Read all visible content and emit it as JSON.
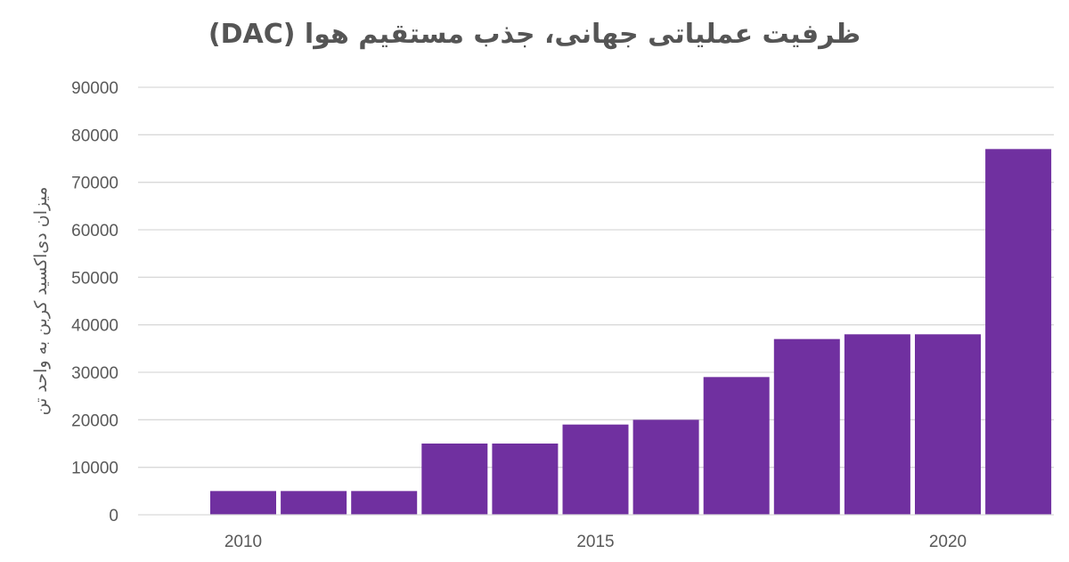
{
  "chart_data": {
    "type": "bar",
    "title": "ظرفیت عملیاتی جهانی، جذب مستقیم هوا (DAC)",
    "ylabel": "میزان دی‌اکسید کربن به واحد تن",
    "xlabel": "",
    "ylim": [
      0,
      90000
    ],
    "yticks": [
      "0",
      "10000",
      "20000",
      "30000",
      "40000",
      "50000",
      "60000",
      "70000",
      "80000",
      "90000"
    ],
    "x_tick_labels": [
      "2010",
      "2015",
      "2020"
    ],
    "categories": [
      2010,
      2011,
      2012,
      2013,
      2014,
      2015,
      2016,
      2017,
      2018,
      2019,
      2020,
      2021
    ],
    "values": [
      5000,
      5000,
      5000,
      15000,
      15000,
      19000,
      20000,
      29000,
      37000,
      38000,
      38000,
      77000
    ],
    "bar_color": "#7030a0",
    "grid": true
  }
}
